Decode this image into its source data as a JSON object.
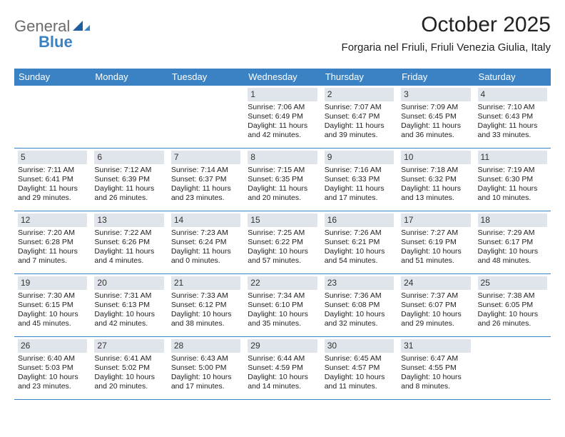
{
  "logo": {
    "word1": "General",
    "word2": "Blue"
  },
  "title": "October 2025",
  "location": "Forgaria nel Friuli, Friuli Venezia Giulia, Italy",
  "colors": {
    "header_bg": "#3a82c4",
    "header_text": "#ffffff",
    "daynum_bg": "#dfe5ea",
    "border": "#3a82c4",
    "body_text": "#222222",
    "logo_gray": "#6b6b6b",
    "logo_blue": "#3a82c4"
  },
  "days_of_week": [
    "Sunday",
    "Monday",
    "Tuesday",
    "Wednesday",
    "Thursday",
    "Friday",
    "Saturday"
  ],
  "weeks": [
    [
      {
        "n": "",
        "sr": "",
        "ss": "",
        "d1": "",
        "d2": ""
      },
      {
        "n": "",
        "sr": "",
        "ss": "",
        "d1": "",
        "d2": ""
      },
      {
        "n": "",
        "sr": "",
        "ss": "",
        "d1": "",
        "d2": ""
      },
      {
        "n": "1",
        "sr": "Sunrise: 7:06 AM",
        "ss": "Sunset: 6:49 PM",
        "d1": "Daylight: 11 hours",
        "d2": "and 42 minutes."
      },
      {
        "n": "2",
        "sr": "Sunrise: 7:07 AM",
        "ss": "Sunset: 6:47 PM",
        "d1": "Daylight: 11 hours",
        "d2": "and 39 minutes."
      },
      {
        "n": "3",
        "sr": "Sunrise: 7:09 AM",
        "ss": "Sunset: 6:45 PM",
        "d1": "Daylight: 11 hours",
        "d2": "and 36 minutes."
      },
      {
        "n": "4",
        "sr": "Sunrise: 7:10 AM",
        "ss": "Sunset: 6:43 PM",
        "d1": "Daylight: 11 hours",
        "d2": "and 33 minutes."
      }
    ],
    [
      {
        "n": "5",
        "sr": "Sunrise: 7:11 AM",
        "ss": "Sunset: 6:41 PM",
        "d1": "Daylight: 11 hours",
        "d2": "and 29 minutes."
      },
      {
        "n": "6",
        "sr": "Sunrise: 7:12 AM",
        "ss": "Sunset: 6:39 PM",
        "d1": "Daylight: 11 hours",
        "d2": "and 26 minutes."
      },
      {
        "n": "7",
        "sr": "Sunrise: 7:14 AM",
        "ss": "Sunset: 6:37 PM",
        "d1": "Daylight: 11 hours",
        "d2": "and 23 minutes."
      },
      {
        "n": "8",
        "sr": "Sunrise: 7:15 AM",
        "ss": "Sunset: 6:35 PM",
        "d1": "Daylight: 11 hours",
        "d2": "and 20 minutes."
      },
      {
        "n": "9",
        "sr": "Sunrise: 7:16 AM",
        "ss": "Sunset: 6:33 PM",
        "d1": "Daylight: 11 hours",
        "d2": "and 17 minutes."
      },
      {
        "n": "10",
        "sr": "Sunrise: 7:18 AM",
        "ss": "Sunset: 6:32 PM",
        "d1": "Daylight: 11 hours",
        "d2": "and 13 minutes."
      },
      {
        "n": "11",
        "sr": "Sunrise: 7:19 AM",
        "ss": "Sunset: 6:30 PM",
        "d1": "Daylight: 11 hours",
        "d2": "and 10 minutes."
      }
    ],
    [
      {
        "n": "12",
        "sr": "Sunrise: 7:20 AM",
        "ss": "Sunset: 6:28 PM",
        "d1": "Daylight: 11 hours",
        "d2": "and 7 minutes."
      },
      {
        "n": "13",
        "sr": "Sunrise: 7:22 AM",
        "ss": "Sunset: 6:26 PM",
        "d1": "Daylight: 11 hours",
        "d2": "and 4 minutes."
      },
      {
        "n": "14",
        "sr": "Sunrise: 7:23 AM",
        "ss": "Sunset: 6:24 PM",
        "d1": "Daylight: 11 hours",
        "d2": "and 0 minutes."
      },
      {
        "n": "15",
        "sr": "Sunrise: 7:25 AM",
        "ss": "Sunset: 6:22 PM",
        "d1": "Daylight: 10 hours",
        "d2": "and 57 minutes."
      },
      {
        "n": "16",
        "sr": "Sunrise: 7:26 AM",
        "ss": "Sunset: 6:21 PM",
        "d1": "Daylight: 10 hours",
        "d2": "and 54 minutes."
      },
      {
        "n": "17",
        "sr": "Sunrise: 7:27 AM",
        "ss": "Sunset: 6:19 PM",
        "d1": "Daylight: 10 hours",
        "d2": "and 51 minutes."
      },
      {
        "n": "18",
        "sr": "Sunrise: 7:29 AM",
        "ss": "Sunset: 6:17 PM",
        "d1": "Daylight: 10 hours",
        "d2": "and 48 minutes."
      }
    ],
    [
      {
        "n": "19",
        "sr": "Sunrise: 7:30 AM",
        "ss": "Sunset: 6:15 PM",
        "d1": "Daylight: 10 hours",
        "d2": "and 45 minutes."
      },
      {
        "n": "20",
        "sr": "Sunrise: 7:31 AM",
        "ss": "Sunset: 6:13 PM",
        "d1": "Daylight: 10 hours",
        "d2": "and 42 minutes."
      },
      {
        "n": "21",
        "sr": "Sunrise: 7:33 AM",
        "ss": "Sunset: 6:12 PM",
        "d1": "Daylight: 10 hours",
        "d2": "and 38 minutes."
      },
      {
        "n": "22",
        "sr": "Sunrise: 7:34 AM",
        "ss": "Sunset: 6:10 PM",
        "d1": "Daylight: 10 hours",
        "d2": "and 35 minutes."
      },
      {
        "n": "23",
        "sr": "Sunrise: 7:36 AM",
        "ss": "Sunset: 6:08 PM",
        "d1": "Daylight: 10 hours",
        "d2": "and 32 minutes."
      },
      {
        "n": "24",
        "sr": "Sunrise: 7:37 AM",
        "ss": "Sunset: 6:07 PM",
        "d1": "Daylight: 10 hours",
        "d2": "and 29 minutes."
      },
      {
        "n": "25",
        "sr": "Sunrise: 7:38 AM",
        "ss": "Sunset: 6:05 PM",
        "d1": "Daylight: 10 hours",
        "d2": "and 26 minutes."
      }
    ],
    [
      {
        "n": "26",
        "sr": "Sunrise: 6:40 AM",
        "ss": "Sunset: 5:03 PM",
        "d1": "Daylight: 10 hours",
        "d2": "and 23 minutes."
      },
      {
        "n": "27",
        "sr": "Sunrise: 6:41 AM",
        "ss": "Sunset: 5:02 PM",
        "d1": "Daylight: 10 hours",
        "d2": "and 20 minutes."
      },
      {
        "n": "28",
        "sr": "Sunrise: 6:43 AM",
        "ss": "Sunset: 5:00 PM",
        "d1": "Daylight: 10 hours",
        "d2": "and 17 minutes."
      },
      {
        "n": "29",
        "sr": "Sunrise: 6:44 AM",
        "ss": "Sunset: 4:59 PM",
        "d1": "Daylight: 10 hours",
        "d2": "and 14 minutes."
      },
      {
        "n": "30",
        "sr": "Sunrise: 6:45 AM",
        "ss": "Sunset: 4:57 PM",
        "d1": "Daylight: 10 hours",
        "d2": "and 11 minutes."
      },
      {
        "n": "31",
        "sr": "Sunrise: 6:47 AM",
        "ss": "Sunset: 4:55 PM",
        "d1": "Daylight: 10 hours",
        "d2": "and 8 minutes."
      },
      {
        "n": "",
        "sr": "",
        "ss": "",
        "d1": "",
        "d2": ""
      }
    ]
  ]
}
